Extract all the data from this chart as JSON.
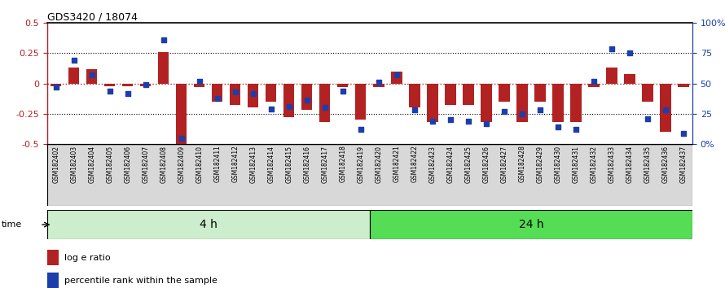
{
  "title": "GDS3420 / 18074",
  "categories": [
    "GSM182402",
    "GSM182403",
    "GSM182404",
    "GSM182405",
    "GSM182406",
    "GSM182407",
    "GSM182408",
    "GSM182409",
    "GSM182410",
    "GSM182411",
    "GSM182412",
    "GSM182413",
    "GSM182414",
    "GSM182415",
    "GSM182416",
    "GSM182417",
    "GSM182418",
    "GSM182419",
    "GSM182420",
    "GSM182421",
    "GSM182422",
    "GSM182423",
    "GSM182424",
    "GSM182425",
    "GSM182426",
    "GSM182427",
    "GSM182428",
    "GSM182429",
    "GSM182430",
    "GSM182431",
    "GSM182432",
    "GSM182433",
    "GSM182434",
    "GSM182435",
    "GSM182436",
    "GSM182437"
  ],
  "log_ratio": [
    -0.02,
    0.13,
    0.12,
    -0.02,
    -0.02,
    -0.02,
    0.26,
    -0.5,
    -0.03,
    -0.15,
    -0.18,
    -0.2,
    -0.15,
    -0.28,
    -0.22,
    -0.32,
    -0.03,
    -0.3,
    -0.03,
    0.1,
    -0.2,
    -0.32,
    -0.18,
    -0.18,
    -0.32,
    -0.15,
    -0.32,
    -0.15,
    -0.32,
    -0.32,
    -0.03,
    0.13,
    0.08,
    -0.15,
    -0.4,
    -0.03
  ],
  "percentile": [
    47,
    69,
    57,
    44,
    42,
    49,
    86,
    5,
    52,
    38,
    43,
    42,
    29,
    31,
    36,
    30,
    44,
    12,
    51,
    57,
    28,
    19,
    20,
    19,
    17,
    27,
    25,
    28,
    14,
    12,
    52,
    79,
    75,
    21,
    28,
    9
  ],
  "group1_count": 18,
  "group1_label": "4 h",
  "group2_label": "24 h",
  "bar_color": "#B22222",
  "dot_color": "#1C3EAA",
  "background_color": "#ffffff",
  "ylim_left": [
    -0.5,
    0.5
  ],
  "ylim_right": [
    0,
    100
  ],
  "yticks_left": [
    -0.5,
    -0.25,
    0.0,
    0.25,
    0.5
  ],
  "ytick_labels_left": [
    "-0.5",
    "-0.25",
    "0",
    "0.25",
    "0.5"
  ],
  "ytick_labels_right": [
    "0%",
    "25",
    "50",
    "75",
    "100%"
  ],
  "yticks_right": [
    0,
    25,
    50,
    75,
    100
  ],
  "group1_color": "#cceecc",
  "group2_color": "#55dd55",
  "time_label": "time",
  "bar_width": 0.6,
  "dot_size": 22
}
